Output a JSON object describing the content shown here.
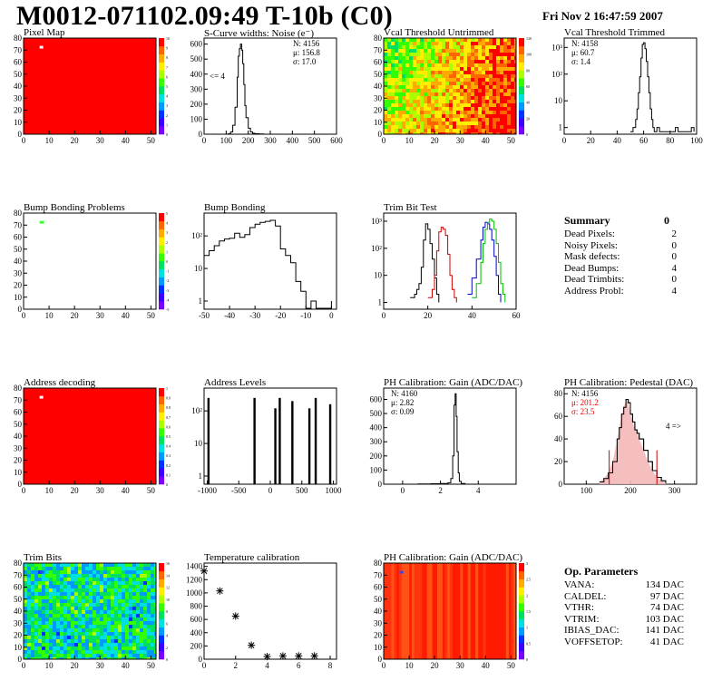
{
  "header": {
    "title": "M0012-071102.09:49 T-10b (C0)",
    "date": "Fri Nov  2 16:47:59 2007"
  },
  "chart_data": [
    {
      "id": "pixmap",
      "type": "heatmap",
      "title": "Pixel Map",
      "xticks": [
        "0",
        "10",
        "20",
        "30",
        "40",
        "50"
      ],
      "yticks": [
        "0",
        "10",
        "20",
        "30",
        "40",
        "50",
        "60",
        "70",
        "80"
      ],
      "zticks": [
        "0",
        "1",
        "2",
        "3",
        "4",
        "5",
        "6",
        "7",
        "8",
        "9",
        "10"
      ],
      "xlim": [
        0,
        52
      ],
      "ylim": [
        0,
        80
      ],
      "zlim": [
        0,
        10
      ],
      "fill_value": 10,
      "special_cells": [
        {
          "x": 7,
          "y": 72,
          "value": 0
        }
      ]
    },
    {
      "id": "scurve",
      "type": "line",
      "title": "S-Curve widths: Noise (e⁻)",
      "xticks": [
        "0",
        "100",
        "200",
        "300",
        "400",
        "500",
        "600"
      ],
      "yticks": [
        "0",
        "100",
        "200",
        "300",
        "400",
        "500",
        "600"
      ],
      "xlim": [
        0,
        600
      ],
      "ylim": [
        0,
        640
      ],
      "stats": [
        "N: 4156",
        "μ: 156.8",
        "σ: 17.0"
      ],
      "annotation": "<= 4",
      "x": [
        100,
        110,
        120,
        130,
        140,
        150,
        155,
        160,
        165,
        170,
        175,
        180,
        185,
        190,
        200,
        210,
        220,
        230,
        250,
        270,
        290,
        600
      ],
      "y": [
        0,
        3,
        15,
        60,
        180,
        380,
        520,
        570,
        600,
        560,
        470,
        330,
        190,
        110,
        40,
        15,
        6,
        3,
        1,
        0,
        0,
        0
      ]
    },
    {
      "id": "vcalu",
      "type": "heatmap",
      "title": "Vcal Threshold Untrimmed",
      "xticks": [
        "0",
        "10",
        "20",
        "30",
        "40",
        "50"
      ],
      "yticks": [
        "0",
        "10",
        "20",
        "30",
        "40",
        "50",
        "60",
        "70",
        "80"
      ],
      "zticks": [
        "0",
        "20",
        "40",
        "60",
        "80",
        "100",
        "120"
      ],
      "xlim": [
        0,
        52
      ],
      "ylim": [
        0,
        80
      ],
      "zlim": [
        0,
        130
      ]
    },
    {
      "id": "vcalt",
      "type": "line",
      "title": "Vcal Threshold Trimmed",
      "log_y": true,
      "xticks": [
        "0",
        "20",
        "40",
        "60",
        "80",
        "100"
      ],
      "yticks": [
        "1",
        "10",
        "10²",
        "10³"
      ],
      "xlim": [
        0,
        100
      ],
      "stats": [
        "N: 4158",
        "μ: 60.7",
        "σ:  1.4"
      ],
      "x": [
        50,
        52,
        54,
        55,
        56,
        57,
        58,
        59,
        60,
        61,
        62,
        63,
        64,
        65,
        66,
        67,
        68,
        70,
        72,
        84,
        86,
        96,
        98
      ],
      "y": [
        0.7,
        1,
        2,
        5,
        20,
        80,
        400,
        1300,
        1500,
        900,
        300,
        80,
        20,
        5,
        2,
        1,
        0.7,
        1,
        0.7,
        1,
        0.7,
        1,
        0.7
      ]
    },
    {
      "id": "bump",
      "type": "heatmap",
      "title": "Bump Bonding Problems",
      "xticks": [
        "0",
        "10",
        "20",
        "30",
        "40",
        "50"
      ],
      "yticks": [
        "0",
        "10",
        "20",
        "30",
        "40",
        "50",
        "60",
        "70",
        "80"
      ],
      "zticks": [
        "-5",
        "-4",
        "-3",
        "-2",
        "-1",
        "0",
        "1",
        "2",
        "3",
        "4",
        "5"
      ],
      "xlim": [
        0,
        52
      ],
      "ylim": [
        0,
        80
      ],
      "zlim": [
        -5,
        5
      ],
      "special_cells": [
        {
          "x": 7,
          "y": 72,
          "value": 1
        }
      ]
    },
    {
      "id": "bumpb",
      "type": "line",
      "title": "Bump Bonding",
      "log_y": true,
      "xticks": [
        "-50",
        "-40",
        "-30",
        "-20",
        "-10",
        "0"
      ],
      "yticks": [
        "1",
        "10",
        "10²"
      ],
      "xlim": [
        -50,
        2
      ],
      "x": [
        -50,
        -48,
        -46,
        -44,
        -42,
        -40,
        -38,
        -36,
        -34,
        -32,
        -30,
        -28,
        -26,
        -24,
        -22,
        -20,
        -18,
        -16,
        -14,
        -12,
        -10,
        -8,
        -6,
        -2,
        0
      ],
      "y": [
        25,
        35,
        50,
        70,
        80,
        85,
        120,
        90,
        110,
        180,
        230,
        260,
        280,
        300,
        200,
        40,
        25,
        15,
        4,
        2,
        0.6,
        1,
        0.6,
        0.6,
        1
      ]
    },
    {
      "id": "trimbit",
      "type": "line",
      "title": "Trim Bit Test",
      "log_y": true,
      "xticks": [
        "0",
        "20",
        "40",
        "60"
      ],
      "yticks": [
        "1",
        "10",
        "10²",
        "10³"
      ],
      "xlim": [
        0,
        60
      ],
      "series": [
        {
          "color": "#000000",
          "x": [
            12,
            14,
            15,
            16,
            17,
            18,
            19,
            20,
            21,
            22,
            23,
            24,
            25
          ],
          "y": [
            1.5,
            2,
            3,
            5,
            20,
            200,
            800,
            500,
            150,
            40,
            8,
            2,
            1
          ]
        },
        {
          "color": "#cc0000",
          "x": [
            20,
            22,
            23,
            24,
            25,
            26,
            27,
            28,
            29,
            30,
            31,
            32,
            33
          ],
          "y": [
            1.5,
            3,
            10,
            80,
            400,
            600,
            500,
            300,
            60,
            10,
            3,
            1.5,
            1
          ]
        },
        {
          "color": "#0000cc",
          "x": [
            38,
            40,
            42,
            44,
            45,
            46,
            47,
            48,
            49,
            50,
            51,
            52,
            53
          ],
          "y": [
            2,
            8,
            40,
            200,
            600,
            900,
            800,
            500,
            200,
            50,
            10,
            2,
            1
          ]
        },
        {
          "color": "#00bb00",
          "x": [
            40,
            42,
            44,
            45,
            46,
            47,
            48,
            49,
            50,
            51,
            52,
            53,
            54,
            55
          ],
          "y": [
            1.5,
            5,
            30,
            150,
            500,
            900,
            1200,
            1000,
            500,
            150,
            30,
            5,
            2,
            1
          ]
        }
      ]
    },
    {
      "id": "addr",
      "type": "heatmap",
      "title": "Address decoding",
      "xticks": [
        "0",
        "10",
        "20",
        "30",
        "40",
        "50"
      ],
      "yticks": [
        "0",
        "10",
        "20",
        "30",
        "40",
        "50",
        "60",
        "70",
        "80"
      ],
      "zticks": [
        "0",
        "0.1",
        "0.2",
        "0.3",
        "0.4",
        "0.5",
        "0.6",
        "0.7",
        "0.8",
        "0.9",
        "1"
      ],
      "xlim": [
        0,
        52
      ],
      "ylim": [
        0,
        80
      ],
      "zlim": [
        0,
        1
      ],
      "fill_value": 1,
      "special_cells": [
        {
          "x": 7,
          "y": 72,
          "value": 0
        }
      ]
    },
    {
      "id": "addrlvl",
      "type": "bar",
      "title": "Address Levels",
      "log_y": true,
      "xticks": [
        "-1000",
        "-500",
        "0",
        "500",
        "1000"
      ],
      "yticks": [
        "1",
        "10",
        "10²"
      ],
      "xlim": [
        -1050,
        1050
      ],
      "x": [
        -980,
        -250,
        80,
        150,
        350,
        620,
        720,
        950
      ],
      "y": [
        250,
        250,
        120,
        250,
        200,
        120,
        250,
        160
      ]
    },
    {
      "id": "phgain",
      "type": "line",
      "title": "PH Calibration: Gain (ADC/DAC)",
      "xticks": [
        "0",
        "2",
        "4"
      ],
      "yticks": [
        "0",
        "100",
        "200",
        "300",
        "400",
        "500",
        "600"
      ],
      "xlim": [
        -1,
        6
      ],
      "ylim": [
        0,
        680
      ],
      "stats": [
        "N: 4160",
        "μ: 2.82",
        "σ: 0.09"
      ],
      "x": [
        0.8,
        1.5,
        2.0,
        2.4,
        2.55,
        2.65,
        2.72,
        2.78,
        2.83,
        2.88,
        2.94,
        3.0,
        3.1,
        3.3
      ],
      "y": [
        2,
        3,
        5,
        10,
        40,
        200,
        560,
        640,
        480,
        230,
        80,
        20,
        5,
        0
      ]
    },
    {
      "id": "phped",
      "type": "line",
      "title": "PH Calibration: Pedestal (DAC)",
      "xticks": [
        "100",
        "200",
        "300"
      ],
      "yticks": [
        "0",
        "20",
        "40",
        "60",
        "80"
      ],
      "xlim": [
        50,
        350
      ],
      "ylim": [
        0,
        85
      ],
      "stats": [
        "N: 4156",
        "μ: 201.2",
        "σ: 23.5"
      ],
      "stats_colors": [
        "#000000",
        "#dd0000",
        "#dd0000"
      ],
      "annotation": "4 =>",
      "x": [
        130,
        140,
        150,
        160,
        170,
        175,
        180,
        185,
        190,
        195,
        200,
        205,
        210,
        215,
        220,
        230,
        240,
        250,
        260,
        270,
        280
      ],
      "y": [
        2,
        5,
        10,
        20,
        40,
        50,
        62,
        68,
        75,
        72,
        62,
        55,
        48,
        45,
        40,
        30,
        20,
        12,
        6,
        3,
        1
      ],
      "fit_lines_x": [
        152,
        260
      ]
    },
    {
      "id": "trimbits",
      "type": "heatmap",
      "title": "Trim Bits",
      "xticks": [
        "0",
        "10",
        "20",
        "30",
        "40",
        "50"
      ],
      "yticks": [
        "0",
        "10",
        "20",
        "30",
        "40",
        "50",
        "60",
        "70",
        "80"
      ],
      "zticks": [
        "0",
        "2",
        "4",
        "6",
        "8",
        "10",
        "12",
        "14",
        "16"
      ],
      "xlim": [
        0,
        52
      ],
      "ylim": [
        0,
        80
      ],
      "zlim": [
        0,
        16
      ],
      "special_cells": [
        {
          "x": 7,
          "y": 72,
          "value": 0
        }
      ]
    },
    {
      "id": "tempcal",
      "type": "scatter",
      "title": "Temperature calibration",
      "xticks": [
        "0",
        "2",
        "4",
        "6",
        "8"
      ],
      "yticks": [
        "0",
        "200",
        "400",
        "600",
        "800",
        "1000",
        "1200",
        "1400"
      ],
      "xlim": [
        0,
        8.4
      ],
      "ylim": [
        0,
        1450
      ],
      "x": [
        0,
        1,
        2,
        3,
        4,
        5,
        6,
        7
      ],
      "y": [
        1330,
        1030,
        650,
        210,
        40,
        50,
        50,
        50
      ]
    },
    {
      "id": "phgain2",
      "type": "heatmap",
      "title": "PH Calibration: Gain (ADC/DAC)",
      "xticks": [
        "0",
        "10",
        "20",
        "30",
        "40",
        "50"
      ],
      "yticks": [
        "0",
        "10",
        "20",
        "30",
        "40",
        "50",
        "60",
        "70",
        "80"
      ],
      "zticks": [
        "0",
        "0.5",
        "1",
        "1.5",
        "2",
        "2.5",
        "3"
      ],
      "xlim": [
        0,
        52
      ],
      "ylim": [
        0,
        80
      ],
      "zlim": [
        0,
        3
      ],
      "special_cells": [
        {
          "x": 7,
          "y": 72,
          "value": 0
        }
      ]
    }
  ],
  "summary": {
    "title": "Summary",
    "value": "0",
    "rows": [
      {
        "label": "Dead Pixels:",
        "value": "2"
      },
      {
        "label": "Noisy Pixels:",
        "value": "0"
      },
      {
        "label": "Mask defects:",
        "value": "0"
      },
      {
        "label": "Dead Bumps:",
        "value": "4"
      },
      {
        "label": "Dead Trimbits:",
        "value": "0"
      },
      {
        "label": "Address Probl:",
        "value": "4"
      }
    ]
  },
  "op_params": {
    "title": "Op. Parameters",
    "rows": [
      {
        "label": "VANA:",
        "value": "134 DAC"
      },
      {
        "label": "CALDEL:",
        "value": "97 DAC"
      },
      {
        "label": "VTHR:",
        "value": "74 DAC"
      },
      {
        "label": "VTRIM:",
        "value": "103 DAC"
      },
      {
        "label": "IBIAS_DAC:",
        "value": "141 DAC"
      },
      {
        "label": "VOFFSETOP:",
        "value": "41 DAC"
      }
    ]
  }
}
